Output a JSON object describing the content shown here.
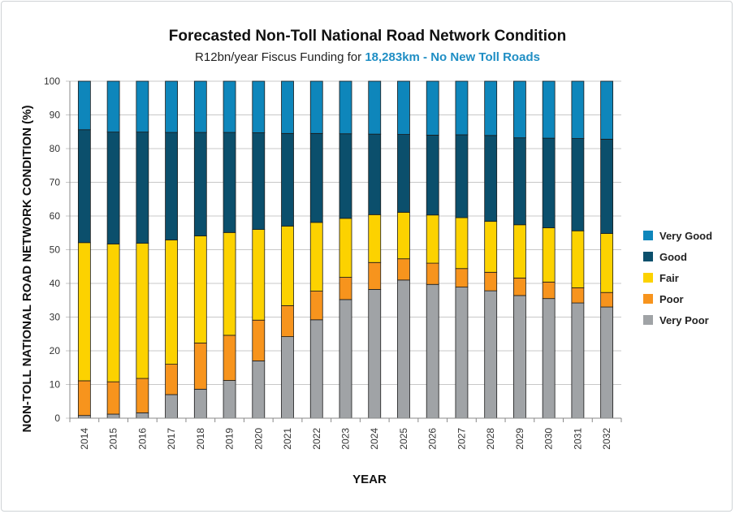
{
  "chart_data": {
    "type": "bar",
    "stacked": true,
    "title": "Forecasted Non-Toll National Road Network Condition",
    "subtitle_prefix": "R12bn/year Fiscus Funding for ",
    "subtitle_highlight": "18,283km - No New Toll Roads",
    "xlabel": "YEAR",
    "ylabel": "NON-TOLL NATIONAL ROAD NETWORK CONDITION (%)",
    "ylim": [
      0,
      100
    ],
    "yticks": [
      0,
      10,
      20,
      30,
      40,
      50,
      60,
      70,
      80,
      90,
      100
    ],
    "grid": true,
    "legend_position": "right",
    "categories": [
      "2014",
      "2015",
      "2016",
      "2017",
      "2018",
      "2019",
      "2020",
      "2021",
      "2022",
      "2023",
      "2024",
      "2025",
      "2026",
      "2027",
      "2028",
      "2029",
      "2030",
      "2031",
      "2032"
    ],
    "series": [
      {
        "name": "Very Poor",
        "color": "#a0a3a6",
        "values": [
          0.8,
          1.2,
          1.6,
          7.0,
          8.6,
          11.2,
          17.0,
          24.2,
          29.2,
          35.2,
          38.2,
          41.0,
          39.7,
          38.9,
          37.8,
          36.4,
          35.5,
          34.2,
          33.0
        ]
      },
      {
        "name": "Poor",
        "color": "#f7941d",
        "values": [
          10.3,
          9.6,
          10.2,
          9.0,
          13.7,
          13.4,
          12.1,
          9.2,
          8.5,
          6.6,
          8.0,
          6.3,
          6.3,
          5.5,
          5.5,
          5.2,
          4.9,
          4.5,
          4.3
        ]
      },
      {
        "name": "Fair",
        "color": "#fcd200",
        "values": [
          41.0,
          40.9,
          40.1,
          36.9,
          31.8,
          30.5,
          26.9,
          23.6,
          20.4,
          17.5,
          14.2,
          13.8,
          14.3,
          15.1,
          15.1,
          15.8,
          16.1,
          16.9,
          17.5
        ]
      },
      {
        "name": "Good",
        "color": "#0b4f6c",
        "values": [
          33.5,
          33.2,
          33.0,
          31.9,
          30.7,
          29.7,
          28.7,
          27.5,
          26.4,
          25.1,
          23.9,
          23.1,
          23.7,
          24.6,
          25.5,
          25.8,
          26.6,
          27.4,
          28.0
        ]
      },
      {
        "name": "Very Good",
        "color": "#0e86bb",
        "values": [
          14.4,
          15.1,
          15.1,
          15.2,
          15.2,
          15.2,
          15.3,
          15.5,
          15.5,
          15.6,
          15.7,
          15.8,
          16.0,
          15.9,
          16.1,
          16.8,
          16.9,
          17.0,
          17.2
        ]
      }
    ],
    "legend_order": [
      "Very Good",
      "Good",
      "Fair",
      "Poor",
      "Very Poor"
    ]
  }
}
